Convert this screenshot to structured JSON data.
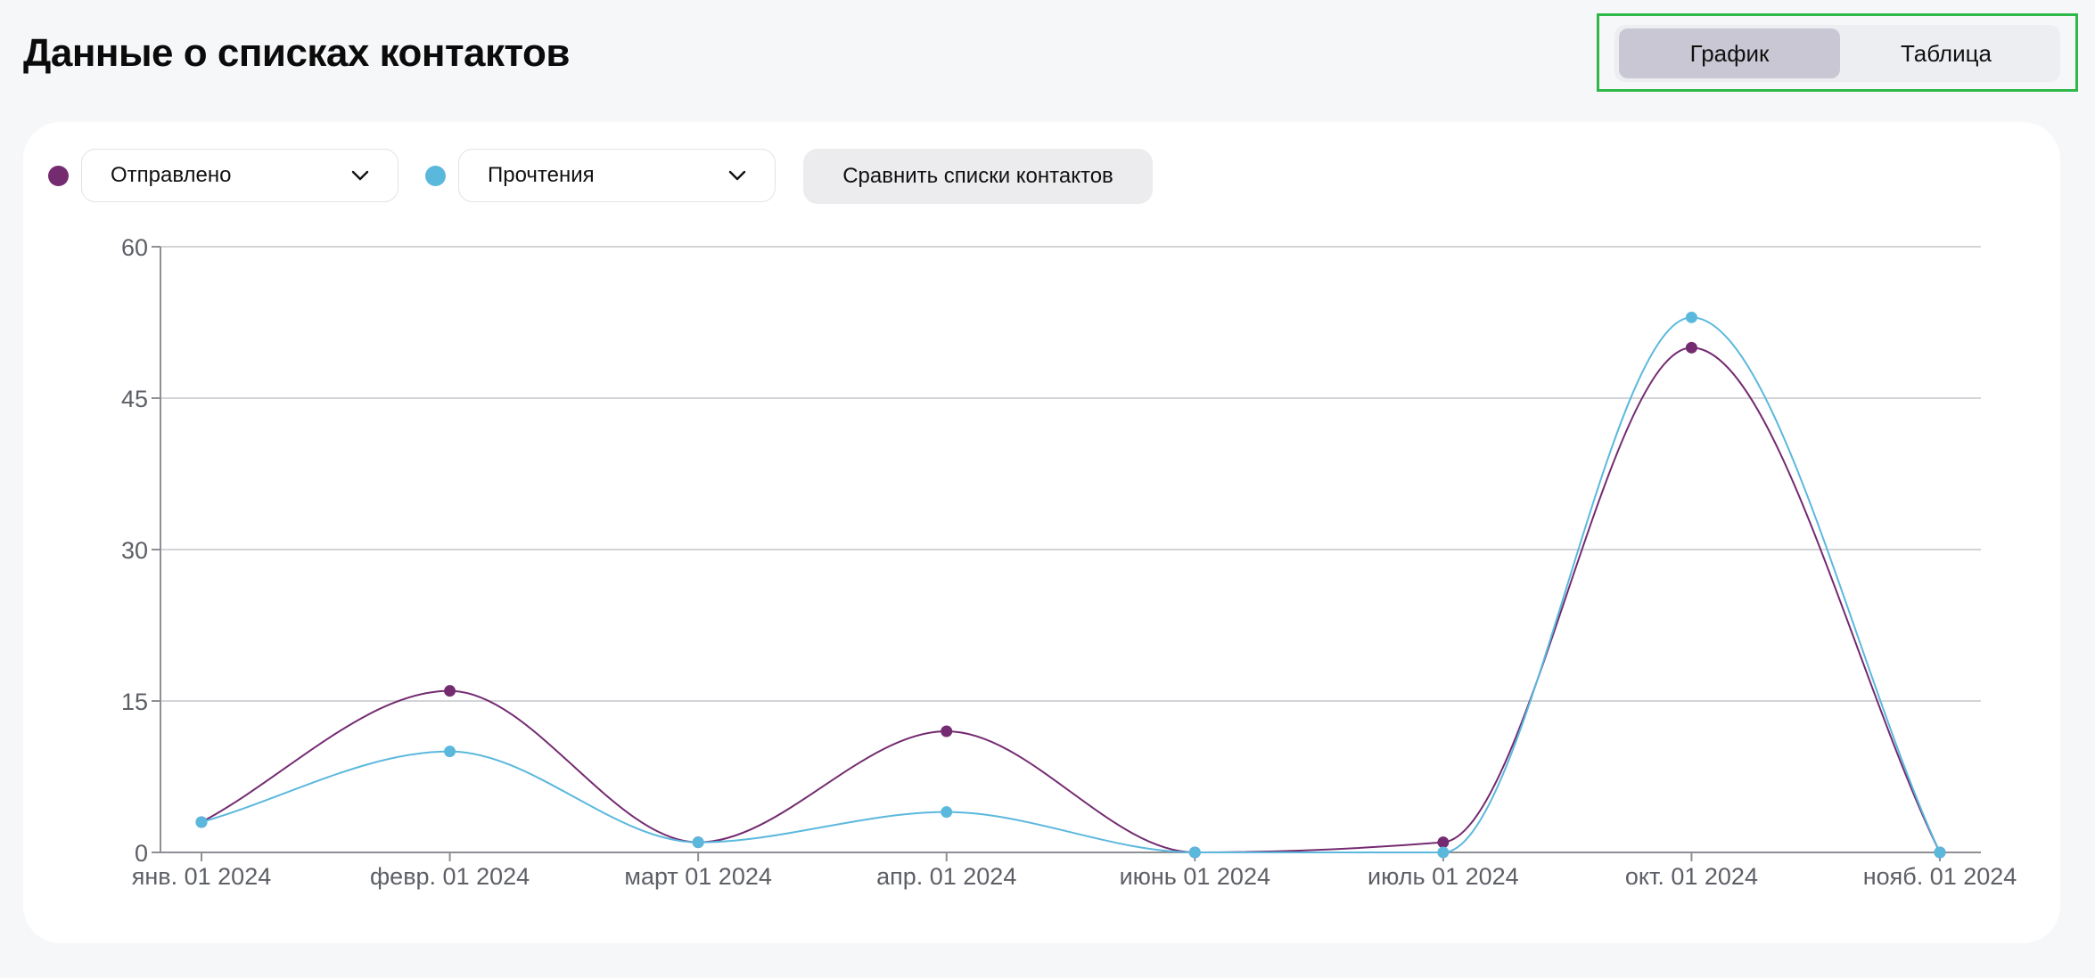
{
  "header": {
    "title": "Данные о списках контактов"
  },
  "view_toggle": {
    "chart_label": "График",
    "table_label": "Таблица",
    "active": "chart"
  },
  "controls": {
    "metric1": {
      "label": "Отправлено",
      "color": "#742b70"
    },
    "metric2": {
      "label": "Прочтения",
      "color": "#5bb8dd"
    },
    "compare_label": "Сравнить списки контактов"
  },
  "icons": {
    "dropdown": "chevron-down-icon"
  },
  "chart_data": {
    "type": "line",
    "title": "",
    "xlabel": "",
    "ylabel": "",
    "grid": true,
    "categories": [
      "янв. 01 2024",
      "февр. 01 2024",
      "март 01 2024",
      "апр. 01 2024",
      "июнь 01 2024",
      "июль 01 2024",
      "окт. 01 2024",
      "нояб. 01 2024"
    ],
    "yticks": [
      0,
      15,
      30,
      45,
      60
    ],
    "ylim": [
      0,
      60
    ],
    "series": [
      {
        "name": "Отправлено",
        "color": "#742b70",
        "values": [
          3,
          16,
          1,
          12,
          0,
          1,
          50,
          0
        ]
      },
      {
        "name": "Прочтения",
        "color": "#5bb8dd",
        "values": [
          3,
          10,
          1,
          4,
          0,
          0,
          53,
          0
        ]
      }
    ]
  }
}
